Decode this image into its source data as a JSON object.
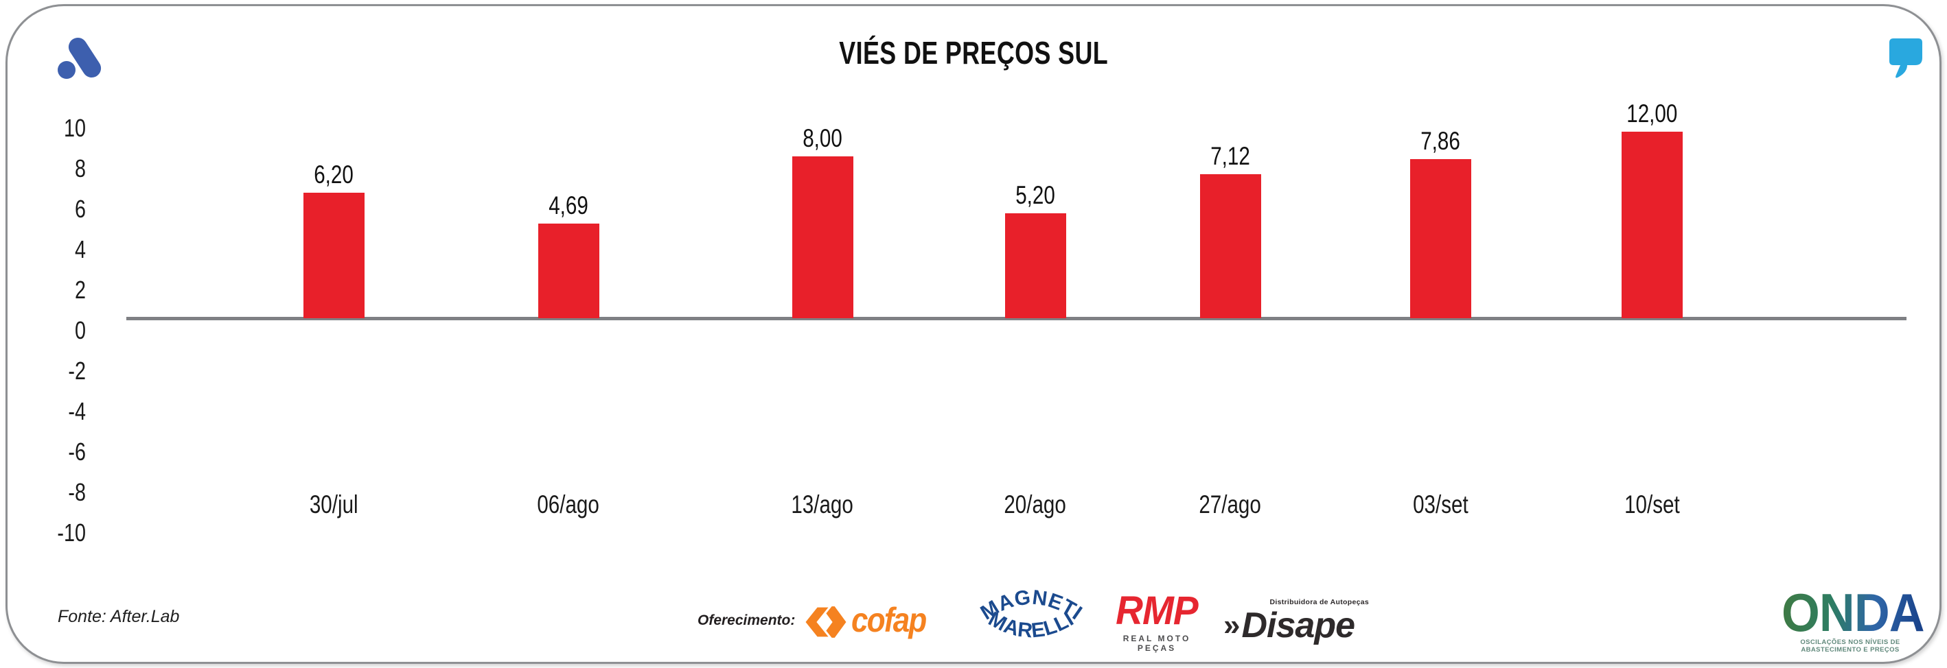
{
  "card": {
    "background": "#ffffff",
    "border_color": "#8e9093"
  },
  "header": {
    "title": "VIÉS DE PREÇOS SUL",
    "afterlab_mark_color": "#3d5fae",
    "quote_mark_color": "#29a8df"
  },
  "chart_data": {
    "type": "bar",
    "title": "VIÉS DE PREÇOS SUL",
    "categories": [
      "30/jul",
      "06/ago",
      "13/ago",
      "20/ago",
      "27/ago",
      "03/set",
      "10/set"
    ],
    "values": [
      6.2,
      4.69,
      8.0,
      5.2,
      7.12,
      7.86,
      12.0
    ],
    "value_labels": [
      "6,20",
      "4,69",
      "8,00",
      "5,20",
      "7,12",
      "7,86",
      "12,00"
    ],
    "ytick_labels": [
      "10",
      "8",
      "6",
      "4",
      "2",
      "0",
      "-2",
      "-4",
      "-6",
      "-8",
      "-10"
    ],
    "ylim": [
      -10,
      10
    ],
    "xlabel": "",
    "ylabel": "",
    "grid": false,
    "legend": false,
    "bar_color": "#e8202a",
    "axis_line_color": "#7f8084",
    "label_color": "#1a1a1a"
  },
  "footer": {
    "source": "Fonte: After.Lab",
    "offering_label": "Oferecimento:",
    "sponsors": {
      "cofap": {
        "name": "Cofap",
        "wordmark": "cofap",
        "color": "#f58220"
      },
      "magneti_marelli": {
        "name": "Magneti Marelli",
        "line1": "MAGNETI",
        "line2": "MARELLI",
        "color": "#1b4a8e"
      },
      "rmp": {
        "name": "RMP Real Moto Peças",
        "wordmark": "RMP",
        "caption": "REAL MOTO PEÇAS",
        "color": "#e62630",
        "caption_color": "#4d4d4f"
      },
      "disape": {
        "name": "Disape",
        "guillemets": "»",
        "wordmark": "Disape",
        "caption": "Distribuidora de Autopeças",
        "color": "#2e2a2b"
      }
    },
    "onda": {
      "wordmark": "ONDA",
      "tagline": "OSCILAÇÕES NOS NÍVEIS DE ABASTECIMENTO E PREÇOS",
      "gradient": [
        "#3f7a42",
        "#2e7d62",
        "#2f66a7",
        "#173f88"
      ],
      "tagline_color": "#61897c"
    }
  }
}
